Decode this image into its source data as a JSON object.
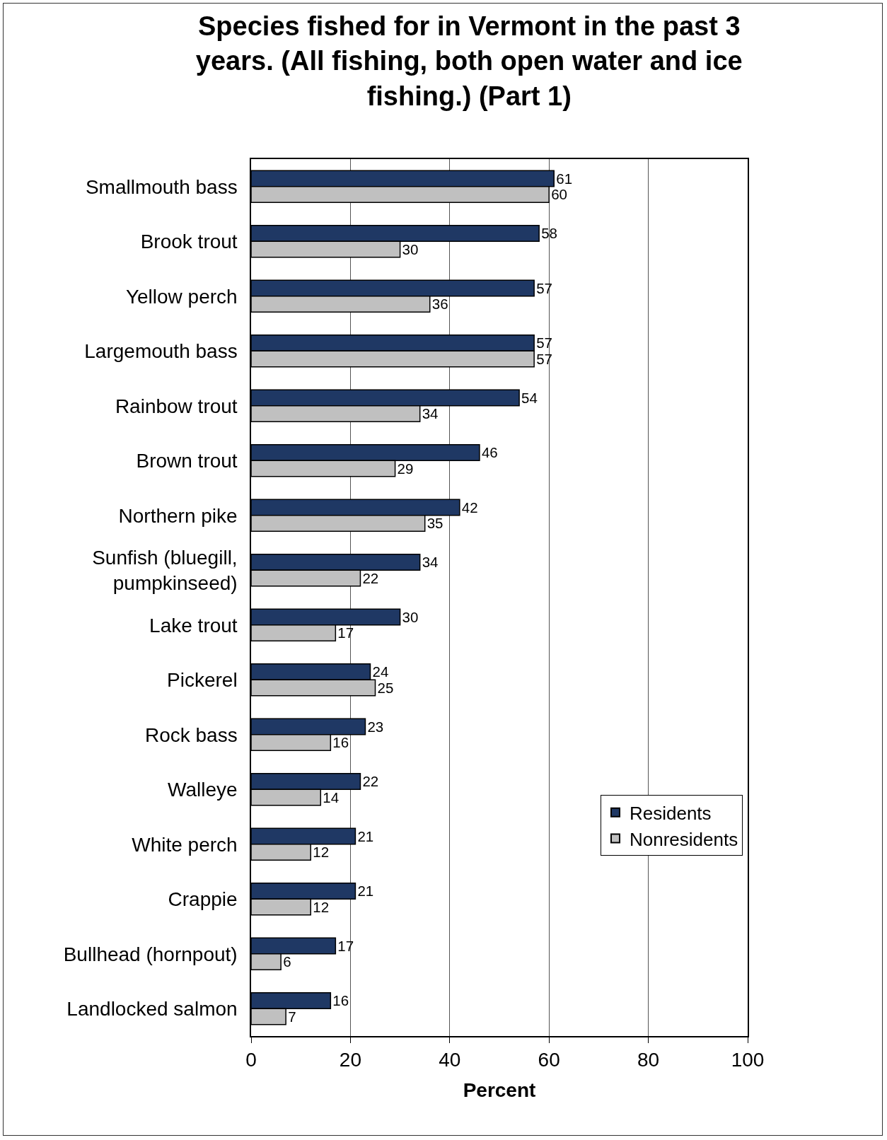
{
  "chart_data": {
    "type": "bar",
    "orientation": "horizontal",
    "title": "Species fished for in Vermont in the past 3 years. (All fishing, both open water and ice fishing.) (Part 1)",
    "xlabel": "Percent",
    "categories": [
      "Smallmouth bass",
      "Brook trout",
      "Yellow perch",
      "Largemouth bass",
      "Rainbow trout",
      "Brown trout",
      "Northern pike",
      "Sunfish (bluegill, pumpkinseed)",
      "Lake trout",
      "Pickerel",
      "Rock bass",
      "Walleye",
      "White perch",
      "Crappie",
      "Bullhead (hornpout)",
      "Landlocked salmon"
    ],
    "series": [
      {
        "name": "Residents",
        "color": "#1f3864",
        "values": [
          61,
          58,
          57,
          57,
          54,
          46,
          42,
          34,
          30,
          24,
          23,
          22,
          21,
          21,
          17,
          16
        ]
      },
      {
        "name": "Nonresidents",
        "color": "#c0c0c0",
        "values": [
          60,
          30,
          36,
          57,
          34,
          29,
          35,
          22,
          17,
          25,
          16,
          14,
          12,
          12,
          6,
          7
        ]
      }
    ],
    "xlim": [
      0,
      100
    ],
    "xticks": [
      0,
      20,
      40,
      60,
      80,
      100
    ],
    "grid": "x",
    "legend": "right",
    "data_labels": true
  }
}
